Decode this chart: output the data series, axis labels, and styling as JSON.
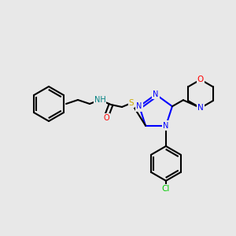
{
  "background_color": "#e8e8e8",
  "atom_colors": {
    "N": "#0000ff",
    "O": "#ff0000",
    "S": "#ccaa00",
    "Cl": "#00cc00",
    "C": "#000000",
    "H": "#008080"
  },
  "figsize": [
    3.0,
    3.0
  ],
  "dpi": 100
}
